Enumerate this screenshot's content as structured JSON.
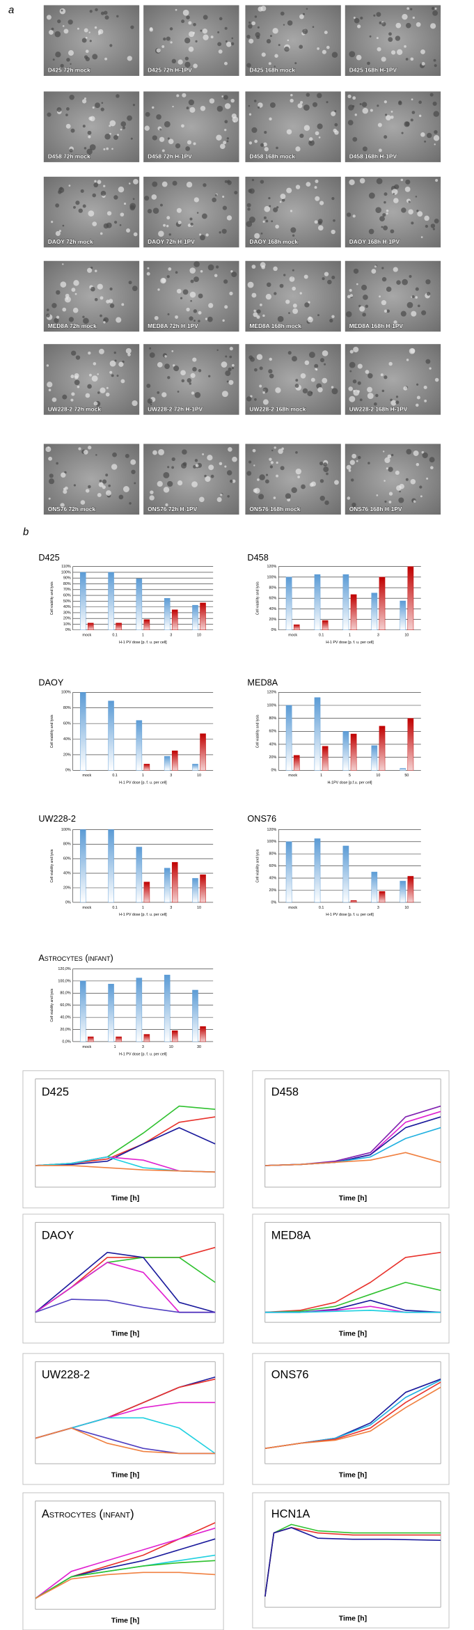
{
  "panel_a": {
    "label": "a",
    "images": [
      "D425 72h mock",
      "D425 72h H-1PV",
      "D425 168h mock",
      "D425 168h H-1PV",
      "D458 72h mock",
      "D458 72h H-1PV",
      "D458 168h mock",
      "D458 168h H-1PV",
      "DAOY 72h mock",
      "DAOY 72h H-1PV",
      "DAOY 168h mock",
      "DAOY 168h H-1PV",
      "MED8A 72h mock",
      "MED8A 72h H-1PV",
      "MED8A 168h mock",
      "MED8A 168h H-1PV",
      "UW228-2 72h mock",
      "UW228-2 72h H-1PV",
      "UW228-2 168h mock",
      "UW228-2 168h H-1PV",
      "ONS76 72h mock",
      "ONS76 72h H-1PV",
      "ONS76 168h mock",
      "ONS76 168h H-1PV"
    ]
  },
  "panel_b": {
    "label": "b"
  },
  "chart_data": [
    {
      "type": "bar",
      "title": "D425",
      "y_label": "Cell viability and lysis",
      "x_label": "H-1 PV dose [p. f. u. per cell]",
      "categories": [
        "mock",
        "0.1",
        "1",
        "3",
        "10"
      ],
      "series": [
        {
          "color": "#5b9bd5",
          "values": [
            100,
            100,
            89,
            55,
            43
          ]
        },
        {
          "color": "#c00000",
          "values": [
            12,
            12,
            18,
            35,
            47
          ]
        }
      ],
      "ylim": [
        0,
        110
      ],
      "yticks": [
        {
          "value": 0,
          "label": "0%"
        },
        {
          "value": 10,
          "label": "10%"
        },
        {
          "value": 20,
          "label": "20%"
        },
        {
          "value": 30,
          "label": "30%"
        },
        {
          "value": 40,
          "label": "40%"
        },
        {
          "value": 50,
          "label": "50%"
        },
        {
          "value": 60,
          "label": "60%"
        },
        {
          "value": 70,
          "label": "70%"
        },
        {
          "value": 80,
          "label": "80%"
        },
        {
          "value": 90,
          "label": "90%"
        },
        {
          "value": 100,
          "label": "100%"
        },
        {
          "value": 110,
          "label": "110%"
        }
      ],
      "grid": true
    },
    {
      "type": "bar",
      "title": "D458",
      "y_label": "Cell viability and lysis",
      "x_label": "H-1 PV dose [p. f. u. per cell]",
      "categories": [
        "mock",
        "0.1",
        "1",
        "3",
        "10"
      ],
      "series": [
        {
          "color": "#5b9bd5",
          "values": [
            100,
            105,
            105,
            70,
            55
          ]
        },
        {
          "color": "#c00000",
          "values": [
            10,
            18,
            67,
            100,
            120
          ]
        }
      ],
      "ylim": [
        0,
        120
      ],
      "yticks": [
        {
          "value": 0,
          "label": "0%"
        },
        {
          "value": 20,
          "label": "20%"
        },
        {
          "value": 40,
          "label": "40%"
        },
        {
          "value": 60,
          "label": "60%"
        },
        {
          "value": 80,
          "label": "80%"
        },
        {
          "value": 100,
          "label": "100%"
        },
        {
          "value": 120,
          "label": "120%"
        }
      ],
      "grid": true
    },
    {
      "type": "bar",
      "title": "DAOY",
      "y_label": "Cell viability and lysis",
      "x_label": "H-1 PV dose [p. f. u. per cell]",
      "categories": [
        "mock",
        "0.1",
        "1",
        "3",
        "10"
      ],
      "series": [
        {
          "color": "#5b9bd5",
          "values": [
            100,
            89,
            64,
            18,
            8
          ]
        },
        {
          "color": "#c00000",
          "values": [
            0,
            0,
            8,
            25,
            47
          ]
        }
      ],
      "ylim": [
        0,
        100
      ],
      "yticks": [
        {
          "value": 0,
          "label": "0%"
        },
        {
          "value": 20,
          "label": "20%"
        },
        {
          "value": 40,
          "label": "40%"
        },
        {
          "value": 60,
          "label": "60%"
        },
        {
          "value": 80,
          "label": "80%"
        },
        {
          "value": 100,
          "label": "100%"
        }
      ],
      "grid": true
    },
    {
      "type": "bar",
      "title": "MED8A",
      "y_label": "Cell viability and lysis",
      "x_label": "H-1PV dose [p.f.u. per cell]",
      "categories": [
        "mock",
        "1",
        "5",
        "10",
        "50"
      ],
      "series": [
        {
          "color": "#5b9bd5",
          "values": [
            100,
            112,
            60,
            38,
            3
          ]
        },
        {
          "color": "#c00000",
          "values": [
            23,
            37,
            56,
            68,
            80
          ]
        }
      ],
      "ylim": [
        0,
        120
      ],
      "yticks": [
        {
          "value": 0,
          "label": "0%"
        },
        {
          "value": 20,
          "label": "20%"
        },
        {
          "value": 40,
          "label": "40%"
        },
        {
          "value": 60,
          "label": "60%"
        },
        {
          "value": 80,
          "label": "80%"
        },
        {
          "value": 100,
          "label": "100%"
        },
        {
          "value": 120,
          "label": "120%"
        }
      ],
      "grid": true
    },
    {
      "type": "bar",
      "title": "UW228-2",
      "y_label": "Cell viability and lysis",
      "x_label": "H-1 PV dose [p. f. u. per cell]",
      "categories": [
        "mock",
        "0.1",
        "1",
        "3",
        "10"
      ],
      "series": [
        {
          "color": "#5b9bd5",
          "values": [
            100,
            100,
            76,
            47,
            33
          ]
        },
        {
          "color": "#c00000",
          "values": [
            0,
            0,
            28,
            55,
            38
          ]
        }
      ],
      "ylim": [
        0,
        100
      ],
      "yticks": [
        {
          "value": 0,
          "label": "0%"
        },
        {
          "value": 20,
          "label": "20%"
        },
        {
          "value": 40,
          "label": "40%"
        },
        {
          "value": 60,
          "label": "60%"
        },
        {
          "value": 80,
          "label": "80%"
        },
        {
          "value": 100,
          "label": "100%"
        }
      ],
      "grid": true
    },
    {
      "type": "bar",
      "title": "ONS76",
      "y_label": "Cell viability and lysis",
      "x_label": "H-1 PV dose [p. f. u. per cell]",
      "categories": [
        "mock",
        "0.1",
        "1",
        "3",
        "10"
      ],
      "series": [
        {
          "color": "#5b9bd5",
          "values": [
            100,
            105,
            93,
            50,
            35
          ]
        },
        {
          "color": "#c00000",
          "values": [
            0,
            0,
            3,
            18,
            43
          ]
        }
      ],
      "ylim": [
        0,
        120
      ],
      "yticks": [
        {
          "value": 0,
          "label": "0%"
        },
        {
          "value": 20,
          "label": "20%"
        },
        {
          "value": 40,
          "label": "40%"
        },
        {
          "value": 60,
          "label": "60%"
        },
        {
          "value": 80,
          "label": "80%"
        },
        {
          "value": 100,
          "label": "100%"
        },
        {
          "value": 120,
          "label": "120%"
        }
      ],
      "grid": true
    },
    {
      "type": "bar",
      "title": "Astrocytes (infant)",
      "y_label": "Cell viability and lysis",
      "x_label": "H-1 PV dose [p. f. u. per cell]",
      "categories": [
        "mock",
        "1",
        "3",
        "10",
        "30"
      ],
      "series": [
        {
          "color": "#5b9bd5",
          "values": [
            100,
            95,
            105,
            110,
            85
          ]
        },
        {
          "color": "#c00000",
          "values": [
            8,
            8,
            12,
            18,
            25
          ]
        }
      ],
      "ylim": [
        0,
        120
      ],
      "yticks": [
        {
          "value": 0,
          "label": "0,0%"
        },
        {
          "value": 20,
          "label": "20,0%"
        },
        {
          "value": 40,
          "label": "40,0%"
        },
        {
          "value": 60,
          "label": "60,0%"
        },
        {
          "value": 80,
          "label": "80,0%"
        },
        {
          "value": 100,
          "label": "100,0%"
        },
        {
          "value": 120,
          "label": "120,0%"
        }
      ],
      "grid": true
    },
    {
      "type": "line",
      "title": "D425",
      "x_label": "Time [h]",
      "x": [
        0,
        2,
        4,
        6,
        8,
        10
      ],
      "xlim": [
        0,
        10
      ],
      "ylim": [
        0,
        10
      ],
      "series": [
        {
          "color": "#e8322c",
          "values": [
            2,
            2.2,
            2.6,
            4,
            6,
            6.5
          ]
        },
        {
          "color": "#2fc12f",
          "values": [
            2,
            2.2,
            2.8,
            5,
            7.5,
            7.2
          ]
        },
        {
          "color": "#1a1a9c",
          "values": [
            2,
            2.1,
            2.4,
            4,
            5.5,
            4
          ]
        },
        {
          "color": "#e020d0",
          "values": [
            2,
            2.2,
            2.8,
            2.5,
            1.5,
            1.4
          ]
        },
        {
          "color": "#20d0e0",
          "values": [
            2,
            2.2,
            2.8,
            1.8,
            1.5,
            1.4
          ]
        },
        {
          "color": "#f08040",
          "values": [
            2,
            2,
            1.8,
            1.6,
            1.5,
            1.4
          ]
        }
      ]
    },
    {
      "type": "line",
      "title": "D458",
      "x_label": "Time [h]",
      "x": [
        0,
        2,
        4,
        6,
        8,
        10
      ],
      "xlim": [
        0,
        10
      ],
      "ylim": [
        0,
        10
      ],
      "series": [
        {
          "color": "#8020b0",
          "values": [
            2,
            2.1,
            2.4,
            3.2,
            6.5,
            7.5
          ]
        },
        {
          "color": "#e020d0",
          "values": [
            2,
            2.1,
            2.3,
            3,
            6,
            7
          ]
        },
        {
          "color": "#1a1a9c",
          "values": [
            2,
            2.1,
            2.3,
            3,
            5.5,
            6.5
          ]
        },
        {
          "color": "#20b0e0",
          "values": [
            2,
            2.1,
            2.3,
            2.8,
            4.5,
            5.5
          ]
        },
        {
          "color": "#f08040",
          "values": [
            2,
            2.1,
            2.3,
            2.5,
            3.2,
            2.3
          ]
        }
      ]
    },
    {
      "type": "line",
      "title": "DAOY",
      "x_label": "Time [h]",
      "x": [
        0,
        2,
        4,
        6,
        8,
        10
      ],
      "xlim": [
        0,
        10
      ],
      "ylim": [
        0,
        10
      ],
      "series": [
        {
          "color": "#e8322c",
          "values": [
            1,
            3.5,
            6.5,
            6.5,
            6.5,
            7.5
          ]
        },
        {
          "color": "#2fc12f",
          "values": [
            1,
            3.5,
            6,
            6.5,
            6.5,
            4
          ]
        },
        {
          "color": "#1a1a9c",
          "values": [
            1,
            4,
            7,
            6.5,
            2,
            1
          ]
        },
        {
          "color": "#e020d0",
          "values": [
            1,
            3.5,
            6,
            5,
            1,
            1
          ]
        },
        {
          "color": "#5040c0",
          "values": [
            1,
            2.3,
            2.2,
            1.5,
            1,
            1
          ]
        }
      ]
    },
    {
      "type": "line",
      "title": "MED8A",
      "x_label": "Time [h]",
      "x": [
        0,
        2,
        4,
        6,
        8,
        10
      ],
      "xlim": [
        0,
        10
      ],
      "ylim": [
        0,
        10
      ],
      "series": [
        {
          "color": "#e8322c",
          "values": [
            1,
            1.2,
            2,
            4,
            6.5,
            7
          ]
        },
        {
          "color": "#2fc12f",
          "values": [
            1,
            1.1,
            1.6,
            2.8,
            4,
            3.2
          ]
        },
        {
          "color": "#1a1a9c",
          "values": [
            1,
            1,
            1.3,
            2.2,
            1.2,
            1
          ]
        },
        {
          "color": "#e020d0",
          "values": [
            1,
            1,
            1.2,
            1.6,
            1,
            1
          ]
        },
        {
          "color": "#20d0e0",
          "values": [
            1,
            1,
            1.1,
            1.2,
            1,
            1
          ]
        }
      ]
    },
    {
      "type": "line",
      "title": "UW228-2",
      "x_label": "Time [h]",
      "x": [
        0,
        2,
        4,
        6,
        8,
        10
      ],
      "xlim": [
        0,
        10
      ],
      "ylim": [
        0,
        10
      ],
      "series": [
        {
          "color": "#1a1a9c",
          "values": [
            2.5,
            3.5,
            4.5,
            6,
            7.5,
            8.5
          ]
        },
        {
          "color": "#e8322c",
          "values": [
            2.5,
            3.5,
            4.5,
            6,
            7.5,
            8.3
          ]
        },
        {
          "color": "#e020d0",
          "values": [
            2.5,
            3.5,
            4.5,
            5.5,
            6,
            6
          ]
        },
        {
          "color": "#20d0e0",
          "values": [
            2.5,
            3.5,
            4.5,
            4.5,
            3.5,
            1
          ]
        },
        {
          "color": "#5040c0",
          "values": [
            2.5,
            3.5,
            2.5,
            1.5,
            1,
            1
          ]
        },
        {
          "color": "#f08040",
          "values": [
            2.5,
            3.5,
            2,
            1.2,
            1,
            1
          ]
        }
      ]
    },
    {
      "type": "line",
      "title": "ONS76",
      "x_label": "Time [h]",
      "x": [
        0,
        2,
        4,
        6,
        8,
        10
      ],
      "xlim": [
        0,
        10
      ],
      "ylim": [
        0,
        10
      ],
      "series": [
        {
          "color": "#1a1a9c",
          "values": [
            1.5,
            2,
            2.5,
            4,
            7,
            8.3
          ]
        },
        {
          "color": "#20b0e0",
          "values": [
            1.5,
            2,
            2.5,
            3.8,
            6.5,
            8.2
          ]
        },
        {
          "color": "#e8322c",
          "values": [
            1.5,
            2,
            2.4,
            3.5,
            6,
            8
          ]
        },
        {
          "color": "#f08040",
          "values": [
            1.5,
            2,
            2.3,
            3.2,
            5.5,
            7.5
          ]
        }
      ]
    },
    {
      "type": "line",
      "title": "Astrocytes (infant)",
      "x_label": "Time [h]",
      "x": [
        0,
        2,
        4,
        6,
        8,
        10
      ],
      "xlim": [
        0,
        10
      ],
      "ylim": [
        0,
        10
      ],
      "series": [
        {
          "color": "#e8322c",
          "values": [
            1,
            3,
            4,
            5,
            6.5,
            8
          ]
        },
        {
          "color": "#e020d0",
          "values": [
            1,
            3.5,
            4.5,
            5.5,
            6.5,
            7.5
          ]
        },
        {
          "color": "#1a1a9c",
          "values": [
            1,
            3,
            3.8,
            4.5,
            5.5,
            6.5
          ]
        },
        {
          "color": "#20d0e0",
          "values": [
            1,
            3,
            3.5,
            4,
            4.5,
            5
          ]
        },
        {
          "color": "#2fc12f",
          "values": [
            1,
            3,
            3.5,
            4,
            4.3,
            4.5
          ]
        },
        {
          "color": "#f08040",
          "values": [
            1,
            2.8,
            3.2,
            3.4,
            3.4,
            3.2
          ]
        }
      ]
    },
    {
      "type": "line",
      "title": "HCN1A",
      "x_label": "Time [h]",
      "x": [
        0,
        0.5,
        1.5,
        3,
        5,
        7,
        10
      ],
      "xlim": [
        0,
        10
      ],
      "ylim": [
        0,
        10
      ],
      "series": [
        {
          "color": "#2fc12f",
          "values": [
            1,
            7,
            7.8,
            7.2,
            7,
            7,
            7
          ]
        },
        {
          "color": "#e8322c",
          "values": [
            1,
            7,
            7.5,
            7,
            6.8,
            6.8,
            6.8
          ]
        },
        {
          "color": "#1a1a9c",
          "values": [
            1,
            7,
            7.5,
            6.5,
            6.4,
            6.4,
            6.3
          ]
        }
      ]
    }
  ]
}
